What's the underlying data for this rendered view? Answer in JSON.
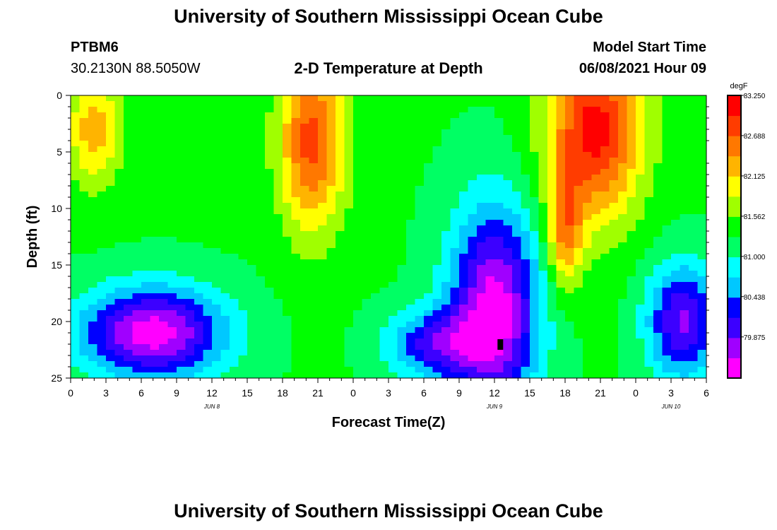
{
  "header": {
    "title_top": "University of Southern Mississippi Ocean Cube",
    "title_bottom": "University of Southern Mississippi Ocean Cube",
    "station_id": "PTBM6",
    "station_coords": "30.2130N  88.5050W",
    "plot_title": "2-D Temperature at Depth",
    "model_start_label": "Model Start Time",
    "model_start_value": "06/08/2021 Hour 09"
  },
  "chart_data": {
    "type": "heatmap",
    "title": "2-D Temperature at Depth",
    "xlabel": "Forecast Time(Z)",
    "ylabel": "Depth (ft)",
    "x_ticks": [
      "0",
      "3",
      "6",
      "9",
      "12",
      "15",
      "18",
      "21",
      "0",
      "3",
      "6",
      "9",
      "12",
      "15",
      "18",
      "21",
      "0",
      "3",
      "6"
    ],
    "x_hours": [
      0,
      3,
      6,
      9,
      12,
      15,
      18,
      21,
      24,
      27,
      30,
      33,
      36,
      39,
      42,
      45,
      48,
      51,
      54
    ],
    "x_range_hours": [
      0,
      54
    ],
    "date_labels": [
      {
        "label": "JUN 8",
        "hour": 12
      },
      {
        "label": "JUN 9",
        "hour": 36
      },
      {
        "label": "JUN 10",
        "hour": 51
      }
    ],
    "y_ticks": [
      0,
      5,
      10,
      15,
      20,
      25
    ],
    "ylim": [
      0,
      25
    ],
    "y_inverted": true,
    "colorbar": {
      "unit": "degF",
      "min": 79.3,
      "max": 83.25,
      "tick_labels": [
        "83.250",
        "82.688",
        "82.125",
        "81.562",
        "81.000",
        "80.438",
        "79.875"
      ],
      "tick_values": [
        83.25,
        82.688,
        82.125,
        81.562,
        81.0,
        80.438,
        79.875
      ],
      "colors": [
        "#ff00ff",
        "#a000ff",
        "#3c00ff",
        "#0000ff",
        "#00c8ff",
        "#00ffff",
        "#00ff64",
        "#00ff00",
        "#a0ff00",
        "#ffff00",
        "#ffb400",
        "#ff7800",
        "#ff3c00",
        "#ff0000"
      ]
    },
    "features": [
      {
        "kind": "warm",
        "hour": 2,
        "depth": 3,
        "value": 82.3,
        "rx": 2.2,
        "ry": 5
      },
      {
        "kind": "warm",
        "hour": 20.5,
        "depth": 4,
        "value": 82.8,
        "rx": 2.8,
        "ry": 8
      },
      {
        "kind": "warm",
        "hour": 44.5,
        "depth": 3,
        "value": 83.1,
        "rx": 4,
        "ry": 8
      },
      {
        "kind": "warm",
        "hour": 42,
        "depth": 12,
        "value": 82.4,
        "rx": 1.5,
        "ry": 5
      },
      {
        "kind": "cool",
        "hour": 7,
        "depth": 21,
        "value": 79.4,
        "rx": 6,
        "ry": 4
      },
      {
        "kind": "cool",
        "hour": 36,
        "depth": 19,
        "value": 79.4,
        "rx": 3.8,
        "ry": 9
      },
      {
        "kind": "cool",
        "hour": 31,
        "depth": 22,
        "value": 80.1,
        "rx": 4,
        "ry": 3
      },
      {
        "kind": "cool",
        "hour": 52,
        "depth": 20,
        "value": 79.8,
        "rx": 3,
        "ry": 5
      }
    ],
    "marker": {
      "hour": 36.5,
      "depth": 22
    }
  }
}
